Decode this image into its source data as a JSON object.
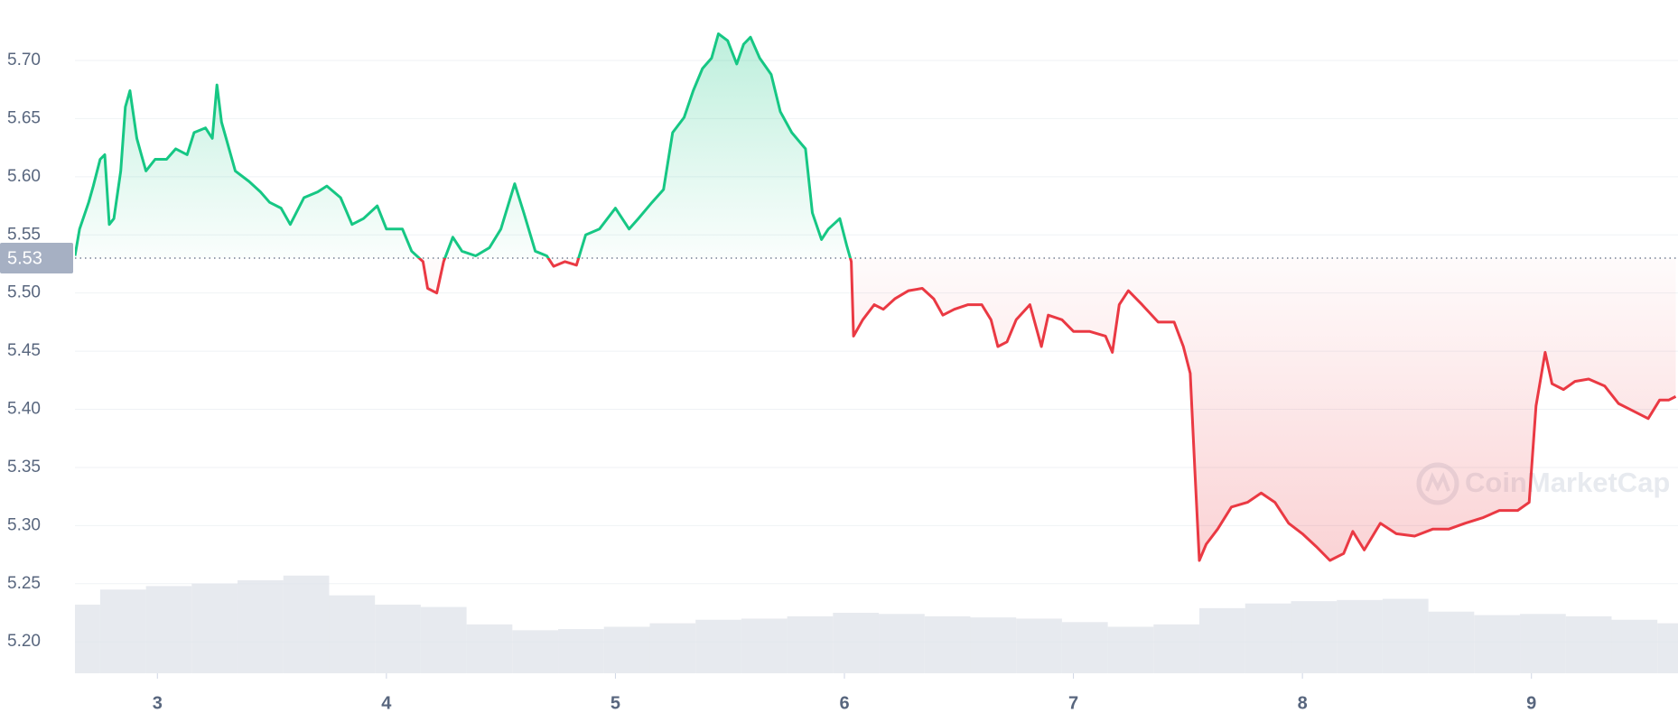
{
  "chart_data": {
    "type": "line",
    "watermark": "CoinMarketCap",
    "x": [
      2.64,
      2.66,
      2.7,
      2.72,
      2.75,
      2.77,
      2.79,
      2.81,
      2.84,
      2.86,
      2.88,
      2.91,
      2.93,
      2.95,
      2.99,
      3.04,
      3.08,
      3.13,
      3.16,
      3.21,
      3.24,
      3.26,
      3.28,
      3.3,
      3.34,
      3.4,
      3.45,
      3.49,
      3.54,
      3.58,
      3.64,
      3.7,
      3.74,
      3.8,
      3.85,
      3.9,
      3.96,
      4.0,
      4.07,
      4.11,
      4.16,
      4.18,
      4.22,
      4.25,
      4.29,
      4.33,
      4.39,
      4.45,
      4.5,
      4.56,
      4.6,
      4.65,
      4.7,
      4.73,
      4.78,
      4.83,
      4.87,
      4.93,
      5.0,
      5.06,
      5.1,
      5.16,
      5.21,
      5.25,
      5.3,
      5.34,
      5.38,
      5.42,
      5.45,
      5.49,
      5.53,
      5.56,
      5.59,
      5.63,
      5.68,
      5.72,
      5.77,
      5.83,
      5.86,
      5.9,
      5.93,
      5.98,
      6.01,
      6.03,
      6.04,
      6.08,
      6.13,
      6.17,
      6.22,
      6.28,
      6.34,
      6.39,
      6.43,
      6.48,
      6.54,
      6.6,
      6.64,
      6.67,
      6.71,
      6.75,
      6.81,
      6.86,
      6.89,
      6.95,
      7.0,
      7.07,
      7.14,
      7.17,
      7.2,
      7.24,
      7.3,
      7.37,
      7.44,
      7.48,
      7.51,
      7.53,
      7.55,
      7.58,
      7.63,
      7.69,
      7.76,
      7.82,
      7.88,
      7.94,
      8.0,
      8.06,
      8.12,
      8.18,
      8.22,
      8.27,
      8.34,
      8.41,
      8.49,
      8.57,
      8.64,
      8.71,
      8.79,
      8.86,
      8.94,
      8.99,
      9.02,
      9.06,
      9.09,
      9.14,
      9.19,
      9.25,
      9.32,
      9.38,
      9.44,
      9.51,
      9.56,
      9.6,
      9.63
    ],
    "values": [
      5.532,
      5.555,
      5.578,
      5.592,
      5.615,
      5.619,
      5.559,
      5.564,
      5.605,
      5.66,
      5.674,
      5.633,
      5.619,
      5.605,
      5.615,
      5.615,
      5.624,
      5.619,
      5.638,
      5.642,
      5.633,
      5.679,
      5.647,
      5.633,
      5.605,
      5.596,
      5.587,
      5.578,
      5.573,
      5.559,
      5.582,
      5.587,
      5.592,
      5.582,
      5.559,
      5.564,
      5.575,
      5.555,
      5.555,
      5.536,
      5.527,
      5.504,
      5.5,
      5.527,
      5.548,
      5.536,
      5.532,
      5.539,
      5.555,
      5.594,
      5.569,
      5.536,
      5.532,
      5.523,
      5.527,
      5.524,
      5.55,
      5.555,
      5.573,
      5.555,
      5.564,
      5.578,
      5.589,
      5.638,
      5.651,
      5.674,
      5.693,
      5.702,
      5.723,
      5.717,
      5.697,
      5.714,
      5.72,
      5.702,
      5.688,
      5.656,
      5.638,
      5.624,
      5.569,
      5.546,
      5.555,
      5.564,
      5.541,
      5.527,
      5.463,
      5.477,
      5.49,
      5.486,
      5.495,
      5.502,
      5.504,
      5.495,
      5.481,
      5.486,
      5.49,
      5.49,
      5.477,
      5.454,
      5.458,
      5.477,
      5.49,
      5.454,
      5.481,
      5.477,
      5.467,
      5.467,
      5.463,
      5.449,
      5.49,
      5.502,
      5.49,
      5.475,
      5.475,
      5.454,
      5.431,
      5.348,
      5.27,
      5.284,
      5.297,
      5.316,
      5.32,
      5.328,
      5.32,
      5.302,
      5.293,
      5.282,
      5.27,
      5.276,
      5.295,
      5.279,
      5.302,
      5.293,
      5.291,
      5.297,
      5.297,
      5.302,
      5.307,
      5.313,
      5.313,
      5.32,
      5.403,
      5.449,
      5.422,
      5.417,
      5.424,
      5.426,
      5.42,
      5.405,
      5.399,
      5.392,
      5.408,
      5.408,
      5.411
    ],
    "baseline": 5.53,
    "colors": {
      "above": "#16c784",
      "below": "#ea3943",
      "baseline_box": "#a6b0c3"
    },
    "volume": {
      "color": "#dfe3ea",
      "x": [
        2.65,
        2.85,
        3.05,
        3.25,
        3.45,
        3.65,
        3.85,
        4.05,
        4.25,
        4.45,
        4.65,
        4.85,
        5.05,
        5.25,
        5.45,
        5.65,
        5.85,
        6.05,
        6.25,
        6.45,
        6.65,
        6.85,
        7.05,
        7.25,
        7.45,
        7.65,
        7.85,
        8.05,
        8.25,
        8.45,
        8.65,
        8.85,
        9.05,
        9.25,
        9.45,
        9.65
      ],
      "values": [
        5.232,
        5.245,
        5.248,
        5.25,
        5.253,
        5.257,
        5.24,
        5.232,
        5.23,
        5.215,
        5.21,
        5.211,
        5.213,
        5.216,
        5.219,
        5.22,
        5.222,
        5.225,
        5.224,
        5.222,
        5.221,
        5.22,
        5.217,
        5.213,
        5.215,
        5.229,
        5.233,
        5.235,
        5.236,
        5.237,
        5.226,
        5.223,
        5.224,
        5.222,
        5.219,
        5.216
      ]
    },
    "xlim": [
      2.64,
      9.64
    ],
    "xticks": [
      3,
      4,
      5,
      6,
      7,
      8,
      9
    ],
    "ylim": [
      5.173,
      5.752
    ],
    "yticks": [
      {
        "value": 5.2,
        "label": "5.20"
      },
      5.25,
      {
        "value": 5.3,
        "label": "5.30"
      },
      5.35,
      {
        "value": 5.4,
        "label": "5.40"
      },
      5.45,
      {
        "value": 5.5,
        "label": "5.50"
      },
      5.55,
      {
        "value": 5.6,
        "label": "5.60"
      },
      5.65,
      {
        "value": 5.7,
        "label": "5.70"
      }
    ],
    "grid": true
  }
}
